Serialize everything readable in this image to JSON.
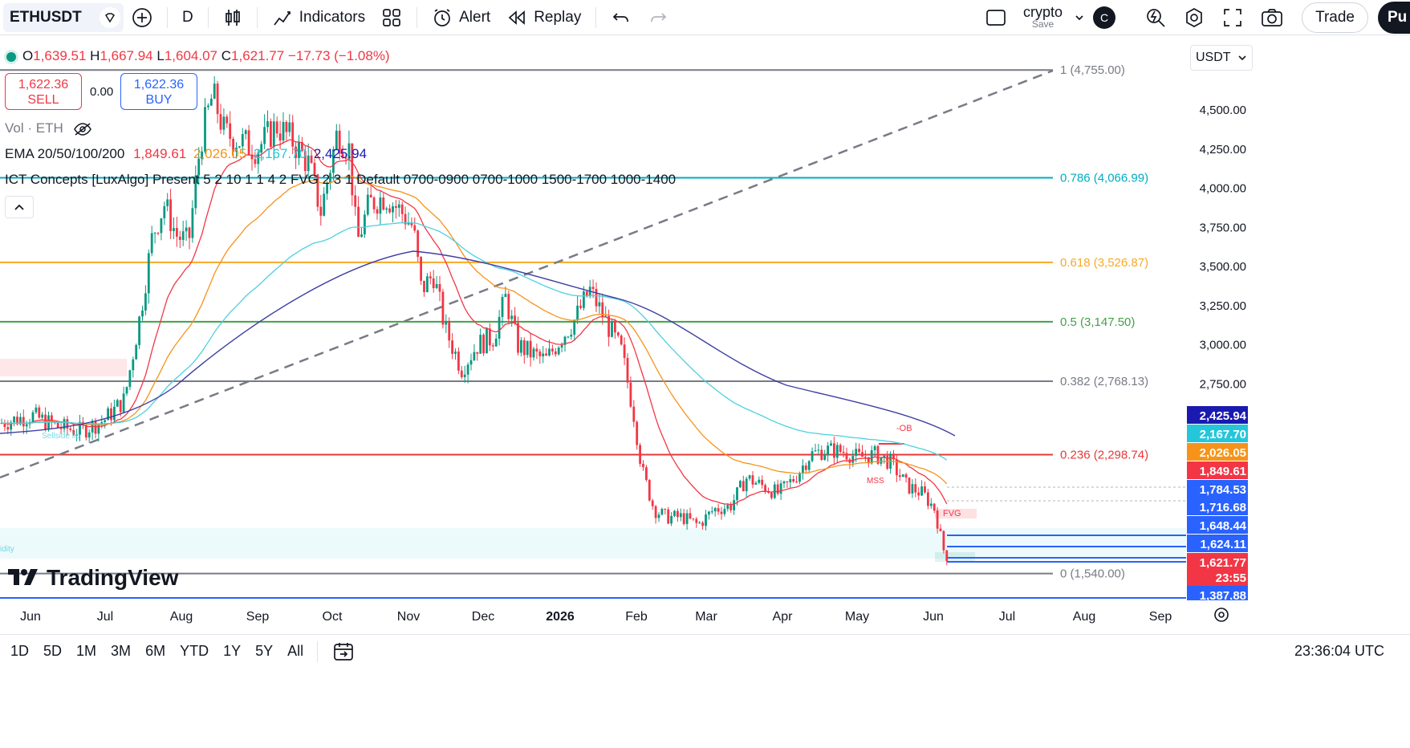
{
  "toolbar": {
    "symbol": "ETHUSDT",
    "interval": "D",
    "indicators_label": "Indicators",
    "alert_label": "Alert",
    "replay_label": "Replay",
    "layout_name": "crypto",
    "layout_sub": "Save",
    "avatar_letter": "C",
    "trade_label": "Trade",
    "publish_label": "Pu"
  },
  "legend": {
    "open_label": "O",
    "open": "1,639.51",
    "high_label": "H",
    "high": "1,667.94",
    "low_label": "L",
    "low": "1,604.07",
    "close_label": "C",
    "close": "1,621.77",
    "change": "−17.73 (−1.08%)",
    "sell_price": "1,622.36",
    "sell_label": "SELL",
    "spread": "0.00",
    "buy_price": "1,622.36",
    "buy_label": "BUY",
    "vol": "Vol · ETH",
    "ema_label": "EMA 20/50/100/200",
    "ema20": "1,849.61",
    "ema50": "2,026.05",
    "ema100": "2,167.70",
    "ema200": "2,425.94",
    "ict": "ICT Concepts [LuxAlgo] Present 5 2 10 1 1 4 2 FVG 2 3 1 Default 0700-0900 0700-1000 1500-1700 1000-1400"
  },
  "currency": "USDT",
  "colors": {
    "up": "#089981",
    "down": "#f23645",
    "ema20": "#f23645",
    "ema50": "#f7931a",
    "ema100": "#4dd0e1",
    "ema200": "#3f3fa3",
    "accent": "#2962ff"
  },
  "chart_data": {
    "type": "candlestick",
    "y_axis": {
      "min": 1387.88,
      "max": 4755,
      "ticks": [
        "4,500.00",
        "4,250.00",
        "4,000.00",
        "3,750.00",
        "3,500.00",
        "3,250.00",
        "3,000.00",
        "2,750.00"
      ],
      "tick_values": [
        4500,
        4250,
        4000,
        3750,
        3500,
        3250,
        3000,
        2750
      ]
    },
    "x_axis": {
      "labels": [
        "Jun",
        "Jul",
        "Aug",
        "Sep",
        "Oct",
        "Nov",
        "Dec",
        "2026",
        "Feb",
        "Mar",
        "Apr",
        "May",
        "Jun",
        "Jul",
        "Aug",
        "Sep"
      ]
    },
    "fib_levels": [
      {
        "ratio": "1",
        "value": 4755.0,
        "label": "1 (4,755.00)",
        "color": "#787b86"
      },
      {
        "ratio": "0.786",
        "value": 4066.99,
        "label": "0.786 (4,066.99)",
        "color": "#00acc1"
      },
      {
        "ratio": "0.618",
        "value": 3526.87,
        "label": "0.618 (3,526.87)",
        "color": "#f9a825"
      },
      {
        "ratio": "0.5",
        "value": 3147.5,
        "label": "0.5 (3,147.50)",
        "color": "#43a047"
      },
      {
        "ratio": "0.382",
        "value": 2768.13,
        "label": "0.382 (2,768.13)",
        "color": "#787b86"
      },
      {
        "ratio": "0.236",
        "value": 2298.74,
        "label": "0.236 (2,298.74)",
        "color": "#e53935"
      },
      {
        "ratio": "0",
        "value": 1540.0,
        "label": "0 (1,540.00)",
        "color": "#787b86"
      }
    ],
    "price_tags": [
      {
        "value": "2,425.94",
        "bg": "#1a1ab0"
      },
      {
        "value": "2,167.70",
        "bg": "#26c6da"
      },
      {
        "value": "2,026.05",
        "bg": "#f7931a"
      },
      {
        "value": "1,849.61",
        "bg": "#f23645"
      },
      {
        "value": "1,784.53",
        "bg": "#2962ff"
      },
      {
        "value": "1,716.68",
        "bg": "#2962ff"
      },
      {
        "value": "1,648.44",
        "bg": "#2962ff"
      },
      {
        "value": "1,624.11",
        "bg": "#2962ff"
      },
      {
        "value": "1,621.77",
        "bg": "#f23645"
      },
      {
        "value": "23:55",
        "bg": "#f23645"
      },
      {
        "value": "1,387.88",
        "bg": "#2962ff"
      }
    ],
    "annotations": [
      "-OB",
      "MSS",
      "FVG",
      "Sellside liq",
      "idity"
    ],
    "monthly_closes": [
      2510,
      2620,
      3700,
      4350,
      4150,
      3800,
      3000,
      2990,
      2800,
      1960,
      2100,
      2290,
      1622
    ],
    "last": {
      "open": 1639.51,
      "high": 1667.94,
      "low": 1604.07,
      "close": 1621.77
    }
  },
  "bottom": {
    "ranges": [
      "1D",
      "5D",
      "1M",
      "3M",
      "6M",
      "YTD",
      "1Y",
      "5Y",
      "All"
    ],
    "clock": "23:36:04 UTC"
  },
  "logo_text": "TradingView"
}
